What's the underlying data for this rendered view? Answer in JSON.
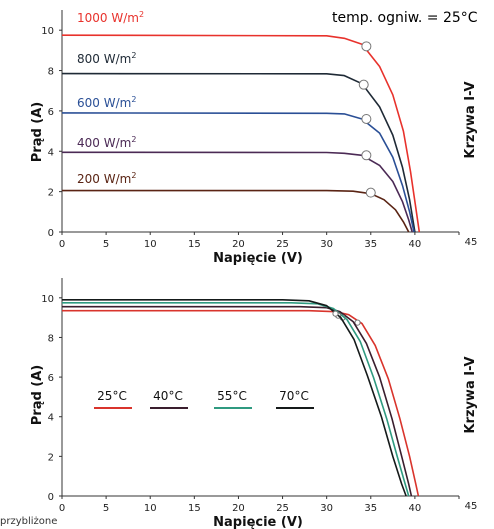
{
  "chart_data": [
    {
      "type": "line",
      "title": "",
      "annotation": "temp. ogniw. = 25°C",
      "xlabel": "Napięcie (V)",
      "ylabel": "Prąd (A)",
      "side_label": "Krzywa I-V",
      "xlim": [
        0,
        45
      ],
      "ylim": [
        0,
        11
      ],
      "xticks": [
        0,
        5,
        10,
        15,
        20,
        25,
        30,
        35,
        40,
        45
      ],
      "yticks": [
        0,
        2,
        4,
        6,
        8,
        10
      ],
      "grid": false,
      "series": [
        {
          "name": "1000 W/m²",
          "name_base": "1000 W/m",
          "name_sup": "2",
          "color": "#e8322c",
          "points": [
            [
              0,
              9.75
            ],
            [
              30,
              9.72
            ],
            [
              32,
              9.6
            ],
            [
              34,
              9.3
            ],
            [
              36,
              8.2
            ],
            [
              37.5,
              6.8
            ],
            [
              38.7,
              5.0
            ],
            [
              39.5,
              3.0
            ],
            [
              40.1,
              1.2
            ],
            [
              40.5,
              0
            ]
          ],
          "mpp": [
            34.5,
            9.2
          ]
        },
        {
          "name": "800 W/m²",
          "name_base": "800 W/m",
          "name_sup": "2",
          "color": "#1f2a36",
          "points": [
            [
              0,
              7.85
            ],
            [
              30,
              7.84
            ],
            [
              32,
              7.75
            ],
            [
              34,
              7.35
            ],
            [
              36,
              6.2
            ],
            [
              37.5,
              4.8
            ],
            [
              38.6,
              3.2
            ],
            [
              39.4,
              1.6
            ],
            [
              40.0,
              0
            ]
          ],
          "mpp": [
            34.2,
            7.3
          ]
        },
        {
          "name": "600 W/m²",
          "name_base": "600 W/m",
          "name_sup": "2",
          "color": "#2a4f96",
          "points": [
            [
              0,
              5.9
            ],
            [
              30,
              5.88
            ],
            [
              32,
              5.85
            ],
            [
              34,
              5.6
            ],
            [
              36,
              4.9
            ],
            [
              37.5,
              3.7
            ],
            [
              38.6,
              2.3
            ],
            [
              39.4,
              1.0
            ],
            [
              39.9,
              0
            ]
          ],
          "mpp": [
            34.5,
            5.6
          ]
        },
        {
          "name": "400 W/m²",
          "name_base": "400 W/m",
          "name_sup": "2",
          "color": "#4b2a55",
          "points": [
            [
              0,
              3.95
            ],
            [
              30,
              3.94
            ],
            [
              32,
              3.9
            ],
            [
              34,
              3.8
            ],
            [
              36,
              3.3
            ],
            [
              37.5,
              2.5
            ],
            [
              38.6,
              1.5
            ],
            [
              39.3,
              0.6
            ],
            [
              39.7,
              0
            ]
          ],
          "mpp": [
            34.5,
            3.8
          ]
        },
        {
          "name": "200 W/m²",
          "name_base": "200 W/m",
          "name_sup": "2",
          "color": "#5a2414",
          "points": [
            [
              0,
              2.05
            ],
            [
              30,
              2.05
            ],
            [
              33,
              2.02
            ],
            [
              35,
              1.9
            ],
            [
              36.5,
              1.6
            ],
            [
              37.8,
              1.1
            ],
            [
              38.7,
              0.5
            ],
            [
              39.3,
              0
            ]
          ],
          "mpp": [
            35.0,
            1.95
          ]
        }
      ]
    },
    {
      "type": "line",
      "title": "",
      "xlabel": "Napięcie (V)",
      "ylabel": "Prąd (A)",
      "side_label": "Krzywa I-V",
      "xlim": [
        0,
        45
      ],
      "ylim": [
        0,
        11
      ],
      "xticks": [
        0,
        5,
        10,
        15,
        20,
        25,
        30,
        35,
        40,
        45
      ],
      "yticks": [
        0,
        2,
        4,
        6,
        8,
        10
      ],
      "grid": false,
      "legend_placement": "center-left",
      "series": [
        {
          "name": "25°C",
          "color": "#d9342c",
          "points": [
            [
              0,
              9.35
            ],
            [
              28,
              9.35
            ],
            [
              31,
              9.3
            ],
            [
              32.5,
              9.15
            ],
            [
              34,
              8.7
            ],
            [
              35.5,
              7.6
            ],
            [
              37,
              5.9
            ],
            [
              38.3,
              3.9
            ],
            [
              39.4,
              2.0
            ],
            [
              40.1,
              0.6
            ],
            [
              40.4,
              0
            ]
          ],
          "mpp": [
            33.5,
            8.75
          ]
        },
        {
          "name": "40°C",
          "color": "#3a1e2e",
          "points": [
            [
              0,
              9.55
            ],
            [
              27,
              9.55
            ],
            [
              30,
              9.5
            ],
            [
              31.5,
              9.3
            ],
            [
              33,
              8.8
            ],
            [
              34.5,
              7.7
            ],
            [
              36,
              6.0
            ],
            [
              37.4,
              3.9
            ],
            [
              38.5,
              2.0
            ],
            [
              39.3,
              0.6
            ],
            [
              39.6,
              0
            ]
          ],
          "mpp": [
            31.8,
            9.0
          ]
        },
        {
          "name": "55°C",
          "color": "#2f9a80",
          "points": [
            [
              0,
              9.75
            ],
            [
              26,
              9.75
            ],
            [
              29,
              9.7
            ],
            [
              30.8,
              9.45
            ],
            [
              32.3,
              8.9
            ],
            [
              33.8,
              7.8
            ],
            [
              35.3,
              6.0
            ],
            [
              36.8,
              3.9
            ],
            [
              38.0,
              2.0
            ],
            [
              38.9,
              0.6
            ],
            [
              39.3,
              0
            ]
          ],
          "mpp": [
            31.3,
            9.1
          ]
        },
        {
          "name": "70°C",
          "color": "#151a1a",
          "points": [
            [
              0,
              9.9
            ],
            [
              25,
              9.9
            ],
            [
              28,
              9.85
            ],
            [
              30,
              9.6
            ],
            [
              31.6,
              9.0
            ],
            [
              33.1,
              7.9
            ],
            [
              34.6,
              6.1
            ],
            [
              36.2,
              4.0
            ],
            [
              37.5,
              2.0
            ],
            [
              38.5,
              0.6
            ],
            [
              39.0,
              0
            ]
          ],
          "mpp": [
            31.0,
            9.2
          ]
        }
      ]
    }
  ],
  "footer_text": "przybliżone"
}
